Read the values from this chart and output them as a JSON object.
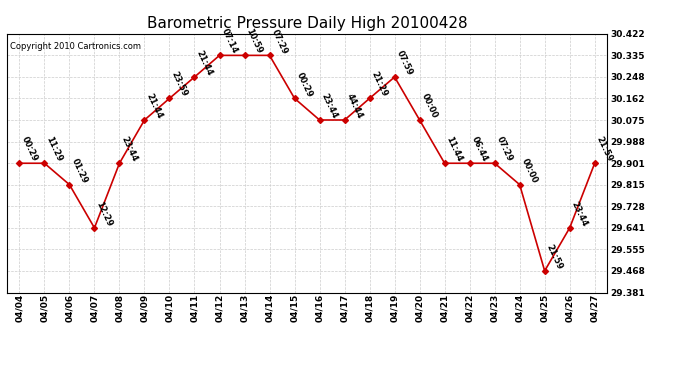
{
  "title": "Barometric Pressure Daily High 20100428",
  "copyright": "Copyright 2010 Cartronics.com",
  "background_color": "#ffffff",
  "line_color": "#cc0000",
  "marker_color": "#cc0000",
  "grid_color": "#cccccc",
  "text_color": "#000000",
  "ylim": [
    29.381,
    30.422
  ],
  "yticks": [
    29.381,
    29.468,
    29.555,
    29.641,
    29.728,
    29.815,
    29.901,
    29.988,
    30.075,
    30.162,
    30.248,
    30.335,
    30.422
  ],
  "dates": [
    "04/04",
    "04/05",
    "04/06",
    "04/07",
    "04/08",
    "04/09",
    "04/10",
    "04/11",
    "04/12",
    "04/13",
    "04/14",
    "04/15",
    "04/16",
    "04/17",
    "04/18",
    "04/19",
    "04/20",
    "04/21",
    "04/22",
    "04/23",
    "04/24",
    "04/25",
    "04/26",
    "04/27"
  ],
  "values": [
    29.901,
    29.901,
    29.815,
    29.641,
    29.901,
    30.075,
    30.162,
    30.248,
    30.335,
    30.335,
    30.335,
    30.162,
    30.075,
    30.075,
    30.162,
    30.248,
    30.075,
    29.901,
    29.901,
    29.901,
    29.815,
    29.468,
    29.641,
    29.901
  ],
  "labels": [
    "00:29",
    "11:29",
    "01:29",
    "12:29",
    "23:44",
    "21:44",
    "23:59",
    "21:44",
    "07:14",
    "10:59",
    "07:29",
    "00:29",
    "23:44",
    "44:44",
    "21:29",
    "07:59",
    "00:00",
    "11:44",
    "06:44",
    "07:29",
    "00:00",
    "21:59",
    "23:44",
    "21:59"
  ],
  "title_fontsize": 11,
  "label_fontsize": 6,
  "tick_fontsize": 6.5,
  "copyright_fontsize": 6
}
